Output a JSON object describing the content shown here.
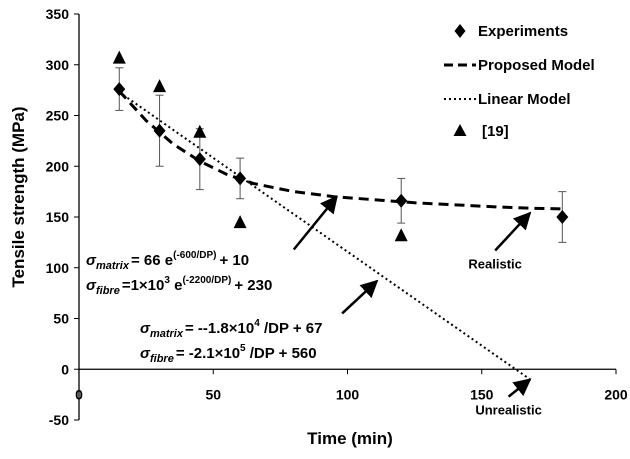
{
  "chart_data": {
    "type": "scatter",
    "xlabel": "Time (min)",
    "ylabel": "Tensile strength (MPa)",
    "xlim": [
      0,
      200
    ],
    "ylim": [
      -50,
      350
    ],
    "x_ticks": [
      0,
      50,
      100,
      150,
      200
    ],
    "y_ticks": [
      -50,
      0,
      50,
      100,
      150,
      200,
      250,
      300,
      350
    ],
    "grid": false,
    "legend_position": "top-right",
    "series": [
      {
        "name": "Experiments",
        "kind": "markers-with-error-bars",
        "marker": "diamond",
        "points": [
          {
            "x": 15,
            "y": 276,
            "err": 21
          },
          {
            "x": 30,
            "y": 235,
            "err": 35
          },
          {
            "x": 45,
            "y": 207,
            "err": 30
          },
          {
            "x": 60,
            "y": 188,
            "err": 20
          },
          {
            "x": 120,
            "y": 166,
            "err": 22
          },
          {
            "x": 180,
            "y": 150,
            "err": 25
          }
        ]
      },
      {
        "name": "Proposed Model",
        "kind": "dashed-line",
        "x": [
          15,
          25,
          35,
          45,
          55,
          65,
          80,
          95,
          110,
          125,
          140,
          155,
          170,
          180
        ],
        "y": [
          274,
          245,
          222,
          205,
          192,
          183,
          175,
          170,
          167,
          164,
          162,
          160,
          158.5,
          158
        ]
      },
      {
        "name": "Linear Model",
        "kind": "dotted-line",
        "x": [
          15,
          168
        ],
        "y": [
          273,
          -10
        ]
      },
      {
        "name": "[19]",
        "kind": "markers",
        "marker": "triangle",
        "points": [
          {
            "x": 15,
            "y": 307
          },
          {
            "x": 30,
            "y": 279
          },
          {
            "x": 45,
            "y": 234
          },
          {
            "x": 60,
            "y": 145
          },
          {
            "x": 120,
            "y": 132
          }
        ]
      }
    ],
    "annotations": [
      {
        "text": "Realistic",
        "arrow_from": [
          155,
          117
        ],
        "arrow_to": [
          168,
          154
        ]
      },
      {
        "text": "Unrealistic",
        "arrow_from": [
          160,
          -27
        ],
        "arrow_to": [
          168,
          -10
        ]
      },
      {
        "arrow_from": [
          80,
          118
        ],
        "arrow_to": [
          96,
          170
        ]
      },
      {
        "arrow_from": [
          98,
          55
        ],
        "arrow_to": [
          111,
          87
        ]
      }
    ],
    "equations": {
      "proposed": {
        "matrix": {
          "symbol": "σ",
          "subscript": "matrix",
          "rhs_a": "= 66 e",
          "exponent": "(-600/DP)",
          "rhs_b": "+ 10"
        },
        "fibre": {
          "symbol": "σ",
          "subscript": "fibre",
          "rhs_a": "=1×10",
          "power": "3",
          "rhs_b": " e",
          "exponent": "(-2200/DP)",
          "rhs_c": "+ 230"
        }
      },
      "linear": {
        "matrix": {
          "symbol": "σ",
          "subscript": "matrix",
          "rhs_a": "= --1.8×10",
          "power": "4",
          "rhs_b": " /DP  + 67"
        },
        "fibre": {
          "symbol": "σ",
          "subscript": "fibre",
          "rhs_a": "= -2.1×10",
          "power": "5",
          "rhs_b": " /DP  + 560"
        }
      }
    }
  }
}
